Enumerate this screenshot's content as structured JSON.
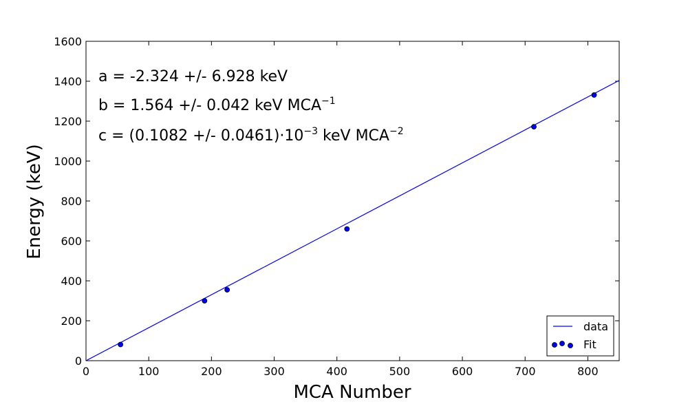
{
  "chart_data": {
    "type": "scatter",
    "xlabel": "MCA Number",
    "ylabel": "Energy (keV)",
    "xlim": [
      0,
      850
    ],
    "ylim": [
      0,
      1600
    ],
    "xticks": [
      0,
      100,
      200,
      300,
      400,
      500,
      600,
      700,
      800
    ],
    "yticks": [
      0,
      200,
      400,
      600,
      800,
      1000,
      1200,
      1400,
      1600
    ],
    "grid": false,
    "legend_position": "bottom-right",
    "annotations": [
      {
        "base": "a = -2.324 +/- 6.928 keV",
        "sup": ""
      },
      {
        "base": "b = 1.564 +/- 0.042 keV MCA",
        "sup": "−1"
      },
      {
        "base": "c = (0.1082 +/- 0.0461)·10",
        "sup": "−3",
        "tail": " keV MCA",
        "tail_sup": "−2"
      }
    ],
    "series": [
      {
        "name": "data",
        "kind": "line",
        "color": "#0000ff",
        "x": [
          0,
          850
        ],
        "y": [
          0,
          1404
        ]
      },
      {
        "name": "Fit",
        "kind": "scatter",
        "color": "#0000ff",
        "x": [
          55,
          189,
          225,
          416,
          714,
          810
        ],
        "y": [
          81,
          300,
          355,
          660,
          1172,
          1331
        ]
      }
    ]
  }
}
